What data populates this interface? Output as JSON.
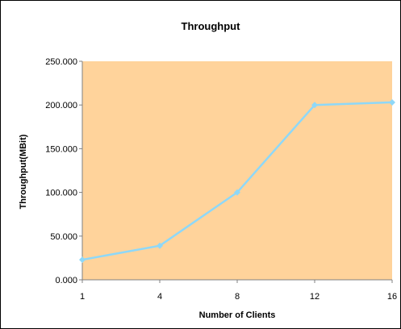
{
  "chart_data": {
    "type": "line",
    "title": "Throughput",
    "xlabel": "Number of Clients",
    "ylabel": "Throughput(MBit)",
    "categories": [
      "1",
      "4",
      "8",
      "12",
      "16"
    ],
    "series": [
      {
        "values": [
          23,
          39,
          100,
          200,
          203
        ]
      }
    ],
    "yticks": [
      "0.000",
      "50.000",
      "100.000",
      "150.000",
      "200.000",
      "250.000"
    ],
    "ylim": [
      0,
      250
    ],
    "grid": false,
    "legend": "none",
    "colors": {
      "plot_background": "#FFD39B",
      "line": "#8ED8F8",
      "marker": "#8ED8F8",
      "axis": "#808080"
    }
  }
}
